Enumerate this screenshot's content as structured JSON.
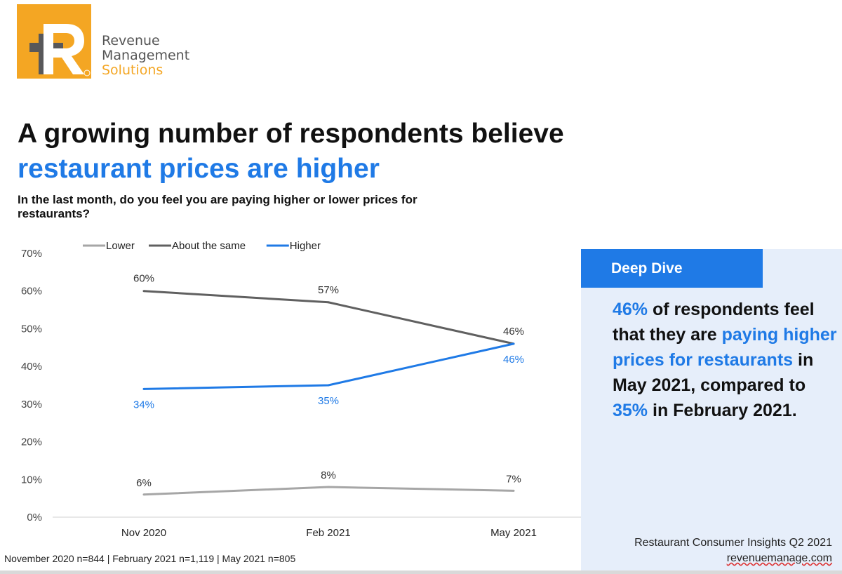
{
  "brand": {
    "line1": "Revenue",
    "line2": "Management",
    "line3": "Solutions",
    "color_orange": "#f4a623",
    "color_dark": "#58585a"
  },
  "title": {
    "part1": "A growing number of respondents believe",
    "part2": "restaurant prices are higher"
  },
  "question": "In the last month, do you feel you are paying higher or lower prices for restaurants?",
  "chart_data": {
    "type": "line",
    "categories": [
      "Nov 2020",
      "Feb 2021",
      "May 2021"
    ],
    "y_ticks": [
      "0%",
      "10%",
      "20%",
      "30%",
      "40%",
      "50%",
      "60%",
      "70%"
    ],
    "ylim": [
      0,
      70
    ],
    "legend_position": "top",
    "series": [
      {
        "name": "Lower",
        "values": [
          6,
          8,
          7
        ],
        "labels": [
          "6%",
          "8%",
          "7%"
        ],
        "color": "#a6a6a6"
      },
      {
        "name": "About the same",
        "values": [
          60,
          57,
          46
        ],
        "labels": [
          "60%",
          "57%",
          "46%"
        ],
        "color": "#606060"
      },
      {
        "name": "Higher",
        "values": [
          34,
          35,
          46
        ],
        "labels": [
          "34%",
          "35%",
          "46%"
        ],
        "color": "#1f7ae6"
      }
    ]
  },
  "footnote": "November 2020 n=844 | February 2021 n=1,119 | May 2021 n=805",
  "deep_dive": {
    "header": "Deep Dive",
    "pct": "46%",
    "t1": " of respondents feel that they are ",
    "highlight": "paying higher prices for restaurants",
    "t2": " in May 2021, compared to ",
    "pct2": "35%",
    "t3": " in February 2021."
  },
  "source": {
    "line1": "Restaurant Consumer Insights Q2 2021",
    "url": "revenuemanage.com"
  }
}
